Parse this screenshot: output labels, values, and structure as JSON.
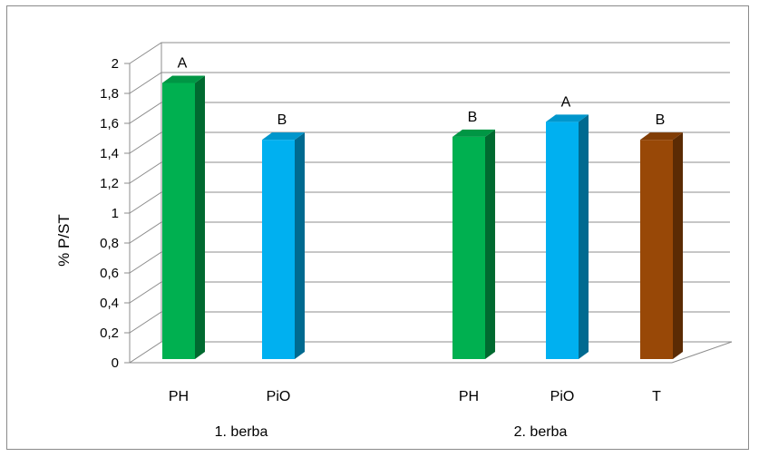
{
  "chart_data": {
    "type": "bar",
    "ylabel": "% P/ST",
    "ylim": [
      0,
      2
    ],
    "ytick_step": 0.2,
    "grid": true,
    "decimal_separator": ",",
    "bars": [
      {
        "category": "PH",
        "group": "1. berba",
        "value": 1.87,
        "letter": "A",
        "color": "#00b050"
      },
      {
        "category": "PiO",
        "group": "1. berba",
        "value": 1.49,
        "letter": "B",
        "color": "#00b0f0"
      },
      {
        "category": "PH",
        "group": "2. berba",
        "value": 1.51,
        "letter": "B",
        "color": "#00b050"
      },
      {
        "category": "PiO",
        "group": "2. berba",
        "value": 1.61,
        "letter": "A",
        "color": "#00b0f0"
      },
      {
        "category": "T",
        "group": "2. berba",
        "value": 1.49,
        "letter": "B",
        "color": "#984807"
      }
    ],
    "groups": [
      "1. berba",
      "2. berba"
    ]
  }
}
